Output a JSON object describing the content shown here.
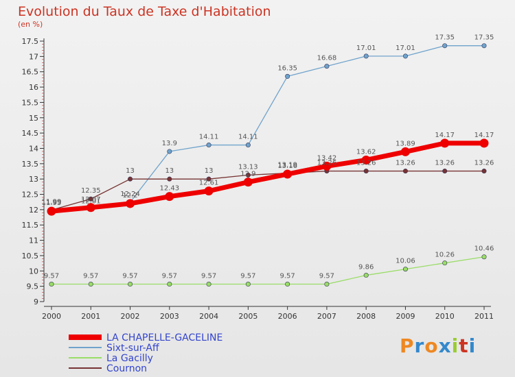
{
  "chart_data": {
    "type": "line",
    "title": "Evolution du Taux de Taxe d'Habitation",
    "subtitle": "(en %)",
    "x": [
      "2000",
      "2001",
      "2002",
      "2003",
      "2004",
      "2005",
      "2006",
      "2007",
      "2008",
      "2009",
      "2010",
      "2011"
    ],
    "ylim": [
      9,
      17.5
    ],
    "yticks": [
      "9",
      "9.5",
      "10",
      "10.5",
      "11",
      "11.5",
      "12",
      "12.5",
      "13",
      "13.5",
      "14",
      "14.5",
      "15",
      "15.5",
      "16",
      "16.5",
      "17",
      "17.5"
    ],
    "grid": false,
    "legend_position": "bottom-left",
    "series": [
      {
        "name": "LA CHAPELLE-GACELINE",
        "color": "#ee0000",
        "values": [
          11.95,
          12.07,
          12.2,
          12.43,
          12.61,
          12.9,
          13.16,
          13.42,
          13.62,
          13.89,
          14.17,
          14.17
        ],
        "labels": [
          "11.95",
          "12.07",
          "12.2",
          "12.43",
          "12.61",
          "12.9",
          "13.16",
          "13.42",
          "13.62",
          "13.89",
          "14.17",
          "14.17"
        ]
      },
      {
        "name": "Sixt-sur-Aff",
        "color": "#6fa3cc",
        "values": [
          11.99,
          12.01,
          12.24,
          13.9,
          14.11,
          14.11,
          16.35,
          16.68,
          17.01,
          17.01,
          17.35,
          17.35
        ],
        "labels": [
          "11.99",
          "12.01",
          "12.24",
          "13.9",
          "14.11",
          "14.11",
          "16.35",
          "16.68",
          "17.01",
          "17.01",
          "17.35",
          "17.35"
        ]
      },
      {
        "name": "La Gacilly",
        "color": "#99dd66",
        "values": [
          9.57,
          9.57,
          9.57,
          9.57,
          9.57,
          9.57,
          9.57,
          9.57,
          9.86,
          10.06,
          10.26,
          10.46
        ],
        "labels": [
          "9.57",
          "9.57",
          "9.57",
          "9.57",
          "9.57",
          "9.57",
          "9.57",
          "9.57",
          "9.86",
          "10.06",
          "10.26",
          "10.46"
        ]
      },
      {
        "name": "Cournon",
        "color": "#773333",
        "values": [
          11.99,
          12.35,
          13,
          13,
          13,
          13.13,
          13.19,
          13.26,
          13.26,
          13.26,
          13.26,
          13.26
        ],
        "labels": [
          "11.99",
          "12.35",
          "13",
          "13",
          "13",
          "13.13",
          "13.19",
          "13.26",
          "13.26",
          "13.26",
          "13.26",
          "13.26"
        ]
      }
    ]
  },
  "logo_text": "Proxiti",
  "logo_colors": [
    "#ee8822",
    "#3388cc",
    "#ee8822",
    "#3388cc",
    "#99cc33",
    "#cc3322",
    "#3388cc"
  ]
}
